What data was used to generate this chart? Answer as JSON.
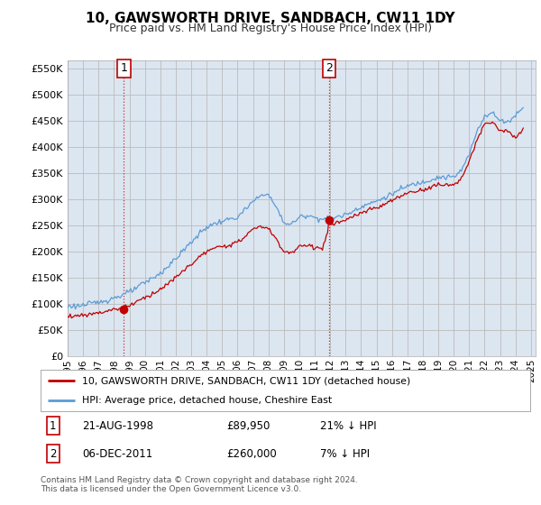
{
  "title": "10, GAWSWORTH DRIVE, SANDBACH, CW11 1DY",
  "subtitle": "Price paid vs. HM Land Registry's House Price Index (HPI)",
  "yticks": [
    0,
    50000,
    100000,
    150000,
    200000,
    250000,
    300000,
    350000,
    400000,
    450000,
    500000,
    550000
  ],
  "ytick_labels": [
    "£0",
    "£50K",
    "£100K",
    "£150K",
    "£200K",
    "£250K",
    "£300K",
    "£350K",
    "£400K",
    "£450K",
    "£500K",
    "£550K"
  ],
  "xtick_years": [
    1995,
    1996,
    1997,
    1998,
    1999,
    2000,
    2001,
    2002,
    2003,
    2004,
    2005,
    2006,
    2007,
    2008,
    2009,
    2010,
    2011,
    2012,
    2013,
    2014,
    2015,
    2016,
    2017,
    2018,
    2019,
    2020,
    2021,
    2022,
    2023,
    2024,
    2025
  ],
  "sale1_x": 1998.646,
  "sale1_y": 89950,
  "sale1_label": "1",
  "sale1_date": "21-AUG-1998",
  "sale1_price": "£89,950",
  "sale1_hpi": "21% ↓ HPI",
  "sale2_x": 2011.923,
  "sale2_y": 260000,
  "sale2_label": "2",
  "sale2_date": "06-DEC-2011",
  "sale2_price": "£260,000",
  "sale2_hpi": "7% ↓ HPI",
  "hpi_color": "#5b9bd5",
  "sold_color": "#c00000",
  "plot_bg_color": "#dce6f1",
  "legend_line1": "10, GAWSWORTH DRIVE, SANDBACH, CW11 1DY (detached house)",
  "legend_line2": "HPI: Average price, detached house, Cheshire East",
  "footnote": "Contains HM Land Registry data © Crown copyright and database right 2024.\nThis data is licensed under the Open Government Licence v3.0."
}
